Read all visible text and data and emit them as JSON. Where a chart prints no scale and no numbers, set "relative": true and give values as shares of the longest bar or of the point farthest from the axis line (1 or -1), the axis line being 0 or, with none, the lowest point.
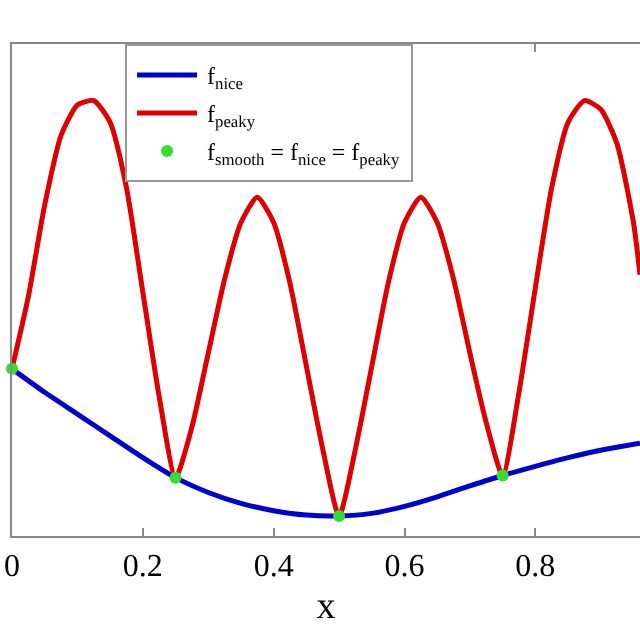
{
  "chart_data": {
    "type": "line",
    "relative": true,
    "xlabel": "x",
    "xlim": [
      0,
      0.96
    ],
    "xticks": [
      0,
      0.2,
      0.4,
      0.6,
      0.8
    ],
    "legend": "top left",
    "line_style": "solid",
    "marker": "none",
    "series": [
      {
        "name": "f$_{nice}$",
        "color": "#0000cc",
        "x": [
          0,
          0.05,
          0.1,
          0.15,
          0.2,
          0.25,
          0.3,
          0.35,
          0.4,
          0.45,
          0.5,
          0.55,
          0.6,
          0.65,
          0.7,
          0.75,
          0.8,
          0.85,
          0.9,
          0.96
        ],
        "values": [
          0.384,
          0.33,
          0.28,
          0.23,
          0.18,
          0.134,
          0.1,
          0.075,
          0.058,
          0.048,
          0.046,
          0.052,
          0.068,
          0.09,
          0.115,
          0.139,
          0.16,
          0.18,
          0.197,
          0.213
        ]
      },
      {
        "name": "f$_{peaky}$",
        "color": "#dd0000",
        "x": [
          0,
          0.025,
          0.05,
          0.075,
          0.1,
          0.125,
          0.15,
          0.175,
          0.2,
          0.225,
          0.25,
          0.275,
          0.3,
          0.325,
          0.35,
          0.375,
          0.4,
          0.425,
          0.45,
          0.475,
          0.5,
          0.525,
          0.55,
          0.575,
          0.6,
          0.625,
          0.65,
          0.675,
          0.7,
          0.725,
          0.75,
          0.775,
          0.8,
          0.825,
          0.85,
          0.875,
          0.9,
          0.925,
          0.95,
          0.96
        ],
        "values": [
          0.384,
          0.55,
          0.76,
          0.92,
          0.99,
          1.0,
          0.95,
          0.8,
          0.56,
          0.32,
          0.134,
          0.25,
          0.42,
          0.59,
          0.72,
          0.778,
          0.72,
          0.58,
          0.39,
          0.2,
          0.046,
          0.2,
          0.39,
          0.58,
          0.72,
          0.778,
          0.72,
          0.59,
          0.42,
          0.26,
          0.139,
          0.33,
          0.57,
          0.8,
          0.95,
          1.0,
          0.98,
          0.9,
          0.72,
          0.6
        ]
      },
      {
        "name": "f$_{smooth}$ = f$_{nice}$ = f$_{peaky}$",
        "type": "scatter",
        "marker": "circle",
        "color": "#33dd33",
        "x": [
          0,
          0.25,
          0.5,
          0.75
        ],
        "values": [
          0.384,
          0.134,
          0.046,
          0.139
        ]
      }
    ]
  }
}
